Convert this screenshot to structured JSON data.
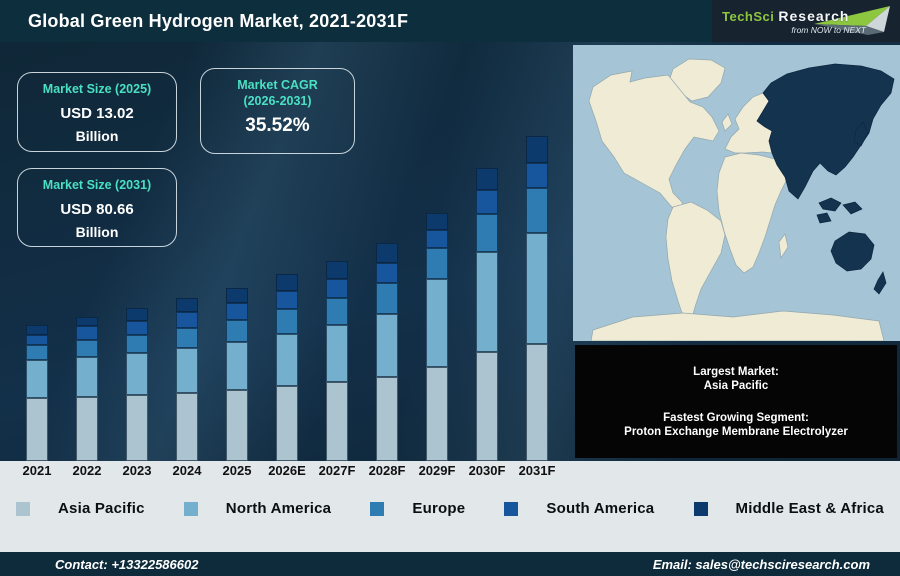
{
  "title": "Global Green Hydrogen Market, 2021-2031F",
  "logo": {
    "brand_primary": "TechSci",
    "brand_secondary": "Research",
    "tagline": "from NOW to NEXT"
  },
  "stat_boxes": {
    "size_2025": {
      "heading": "Market Size (2025)",
      "line1": "USD 13.02",
      "line2": "Billion"
    },
    "cagr": {
      "heading_line1": "Market CAGR",
      "heading_line2": "(2026-2031)",
      "value": "35.52%"
    },
    "size_2031": {
      "heading": "Market Size (2031)",
      "line1": "USD 80.66",
      "line2": "Billion"
    }
  },
  "chart_data": {
    "type": "bar",
    "stacked": true,
    "title": "Global Green Hydrogen Market, 2021-2031F",
    "categories": [
      "2021",
      "2022",
      "2023",
      "2024",
      "2025",
      "2026E",
      "2027F",
      "2028F",
      "2029F",
      "2030F",
      "2031F"
    ],
    "series": [
      {
        "name": "Asia Pacific",
        "color": "#abc4cf",
        "values": [
          63,
          64,
          66,
          68,
          71,
          75,
          79,
          84,
          94,
          109,
          117
        ]
      },
      {
        "name": "North America",
        "color": "#74afcd",
        "values": [
          38,
          40,
          42,
          45,
          48,
          52,
          57,
          63,
          88,
          100,
          111
        ]
      },
      {
        "name": "Europe",
        "color": "#2f7cb2",
        "values": [
          15,
          17,
          18,
          20,
          22,
          25,
          27,
          31,
          31,
          38,
          45
        ]
      },
      {
        "name": "South America",
        "color": "#17569d",
        "values": [
          10,
          14,
          14,
          16,
          17,
          18,
          19,
          20,
          18,
          24,
          25
        ]
      },
      {
        "name": "Middle East & Africa",
        "color": "#0d3a6c",
        "values": [
          10,
          9,
          13,
          14,
          15,
          17,
          18,
          20,
          17,
          22,
          27
        ]
      }
    ],
    "values_are": "visual_bar_segment_heights_px",
    "labeled_totals": {
      "2025": "USD 13.02 Billion",
      "2031": "USD 80.66 Billion",
      "cagr_2026_2031": "35.52%"
    },
    "legend_position": "bottom"
  },
  "map": {
    "highlight_region": "Asia Pacific"
  },
  "info_box": {
    "largest_market_label": "Largest Market:",
    "largest_market_value": "Asia Pacific",
    "fastest_segment_label": "Fastest Growing Segment:",
    "fastest_segment_value": "Proton Exchange Membrane Electrolyzer"
  },
  "footer": {
    "contact": "Contact: +13322586602",
    "email": "Email: sales@techsciresearch.com"
  },
  "colors": {
    "title_bar_bg": "#0d2e3c",
    "logo_bg": "#17232f",
    "accent_teal": "#4ae0c3",
    "box_border": "#c9d4da",
    "strip_bg": "#e2e7e9",
    "footer_bg": "#0d2b3a",
    "black_box_bg": "#050505",
    "map_ocean": "#a5c4d6",
    "map_land": "#f0ebd5",
    "map_highlight": "#14334f"
  }
}
